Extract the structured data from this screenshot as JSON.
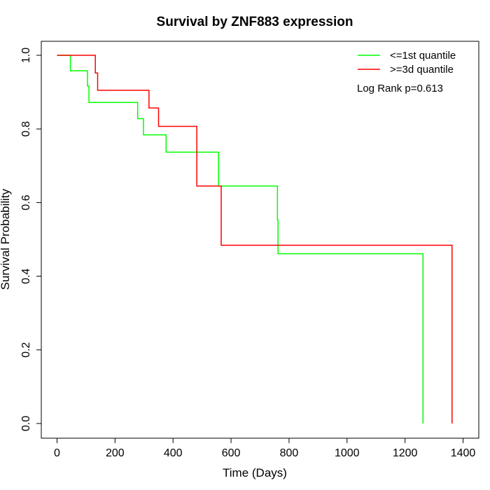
{
  "chart_data": {
    "type": "line",
    "title": "Survival by ZNF883 expression",
    "xlabel": "Time (Days)",
    "ylabel": "Survival Probability",
    "xlim": [
      0,
      1400
    ],
    "ylim": [
      0,
      1
    ],
    "x_ticks": [
      "0",
      "200",
      "400",
      "600",
      "800",
      "1000",
      "1200",
      "1400"
    ],
    "y_ticks": [
      "0.0",
      "0.2",
      "0.4",
      "0.6",
      "0.8",
      "1.0"
    ],
    "legend_position": "top-right",
    "annotation": "Log Rank p=0.613",
    "series": [
      {
        "name": "<=1st quantile",
        "color": "#00ff00",
        "x": [
          0,
          46,
          105,
          110,
          278,
          298,
          376,
          557,
          760,
          762,
          1262,
          1262
        ],
        "y": [
          1.0,
          0.958,
          0.916,
          0.872,
          0.828,
          0.784,
          0.737,
          0.645,
          0.553,
          0.461,
          0.461,
          0.0
        ]
      },
      {
        "name": ">=3d quantile",
        "color": "#ff0000",
        "x": [
          0,
          132,
          140,
          317,
          350,
          482,
          566,
          1362,
          1362
        ],
        "y": [
          1.0,
          0.952,
          0.905,
          0.857,
          0.807,
          0.645,
          0.484,
          0.484,
          0.0
        ]
      }
    ]
  }
}
